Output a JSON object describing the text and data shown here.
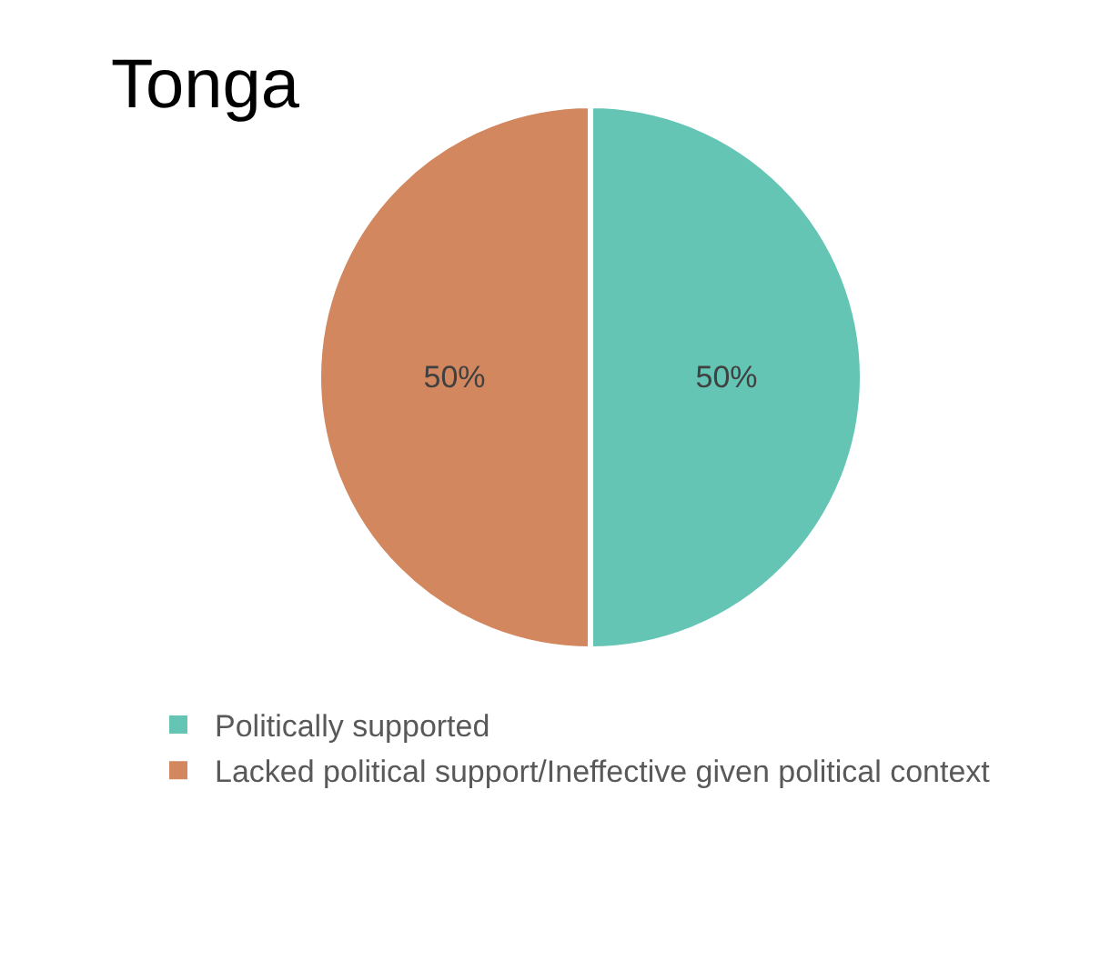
{
  "chart_data": {
    "type": "pie",
    "title": "Tonga",
    "categories": [
      "Politically supported",
      "Lacked political support/Ineffective given political context"
    ],
    "values": [
      50,
      50
    ],
    "colors": [
      "#64c5b5",
      "#d3875f"
    ],
    "value_labels": [
      "50%",
      "50%"
    ],
    "legend": "bottom left"
  }
}
